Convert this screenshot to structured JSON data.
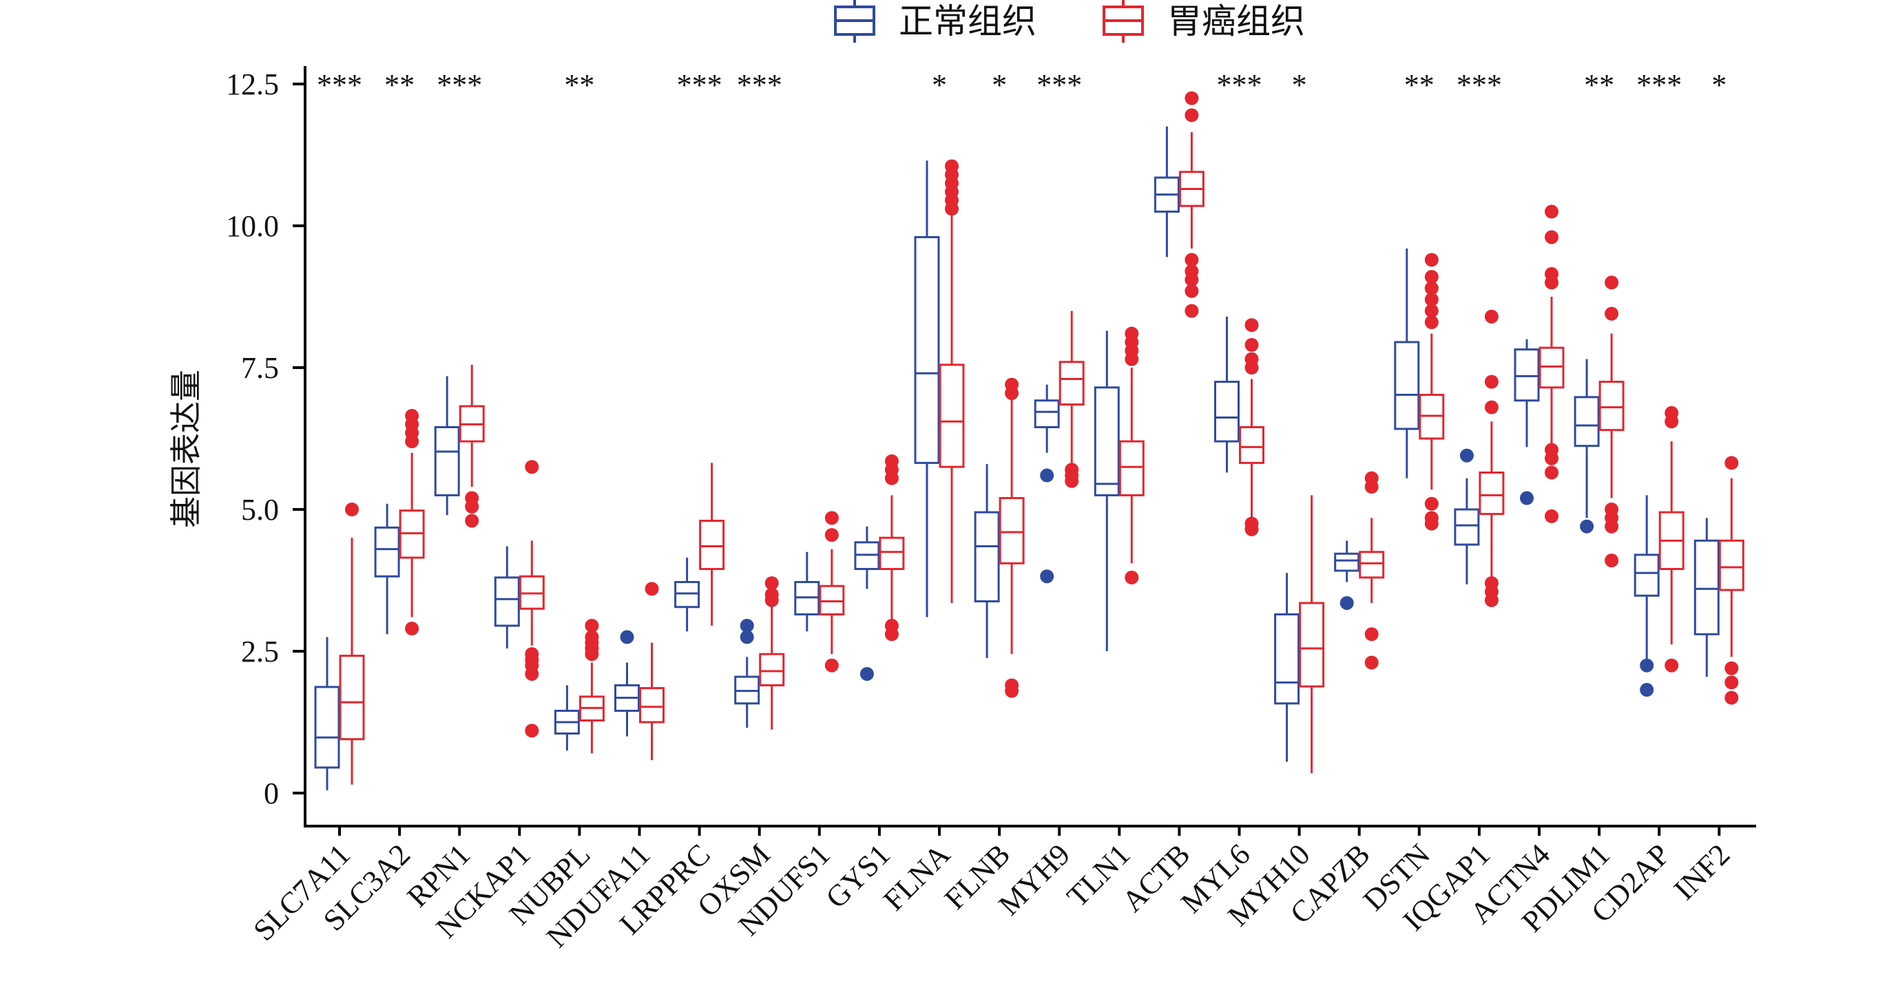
{
  "chart_data": {
    "type": "boxplot",
    "ylabel": "基因表达量",
    "ylim": [
      -0.5,
      12.9
    ],
    "yticks": [
      "0",
      "2.5",
      "5.0",
      "7.5",
      "10.0",
      "12.5"
    ],
    "ytick_values": [
      0,
      2.5,
      5.0,
      7.5,
      10.0,
      12.5
    ],
    "legend_position": "top-center",
    "colors": {
      "normal": "#2f4b9e",
      "tumor": "#e3262f",
      "outlier_normal": "#2c4ea6",
      "outlier_tumor": "#e3262f"
    },
    "series": [
      {
        "name": "正常组织",
        "color": "#2f4b9e"
      },
      {
        "name": "胃癌组织",
        "color": "#e3262f"
      }
    ],
    "categories": [
      "SLC7A11",
      "SLC3A2",
      "RPN1",
      "NCKAP1",
      "NUBPL",
      "NDUFA11",
      "LRPPRC",
      "OXSM",
      "NDUFS1",
      "GYS1",
      "FLNA",
      "FLNB",
      "MYH9",
      "TLN1",
      "ACTB",
      "MYL6",
      "MYH10",
      "CAPZB",
      "DSTN",
      "IQGAP1",
      "ACTN4",
      "PDLIM1",
      "CD2AP",
      "INF2"
    ],
    "significance": [
      "***",
      "**",
      "***",
      "",
      "**",
      "",
      "***",
      "***",
      "",
      "",
      "*",
      "*",
      "***",
      "",
      "",
      "***",
      "*",
      "",
      "**",
      "***",
      "",
      "**",
      "***",
      "*"
    ],
    "boxes": [
      {
        "normal": {
          "min": 0.05,
          "q1": 0.45,
          "median": 0.98,
          "q3": 1.87,
          "max": 2.75,
          "outliers": []
        },
        "tumor": {
          "min": 0.15,
          "q1": 0.95,
          "median": 1.6,
          "q3": 2.42,
          "max": 4.5,
          "outliers": [
            5.0
          ]
        }
      },
      {
        "normal": {
          "min": 2.8,
          "q1": 3.82,
          "median": 4.3,
          "q3": 4.68,
          "max": 5.1,
          "outliers": []
        },
        "tumor": {
          "min": 3.1,
          "q1": 4.15,
          "median": 4.58,
          "q3": 4.98,
          "max": 6.0,
          "outliers": [
            2.9,
            6.2,
            6.35,
            6.5,
            6.65
          ]
        }
      },
      {
        "normal": {
          "min": 4.9,
          "q1": 5.25,
          "median": 6.02,
          "q3": 6.45,
          "max": 7.35,
          "outliers": []
        },
        "tumor": {
          "min": 5.4,
          "q1": 6.2,
          "median": 6.5,
          "q3": 6.82,
          "max": 7.55,
          "outliers": [
            4.8,
            5.05,
            5.2
          ]
        }
      },
      {
        "normal": {
          "min": 2.55,
          "q1": 2.95,
          "median": 3.42,
          "q3": 3.8,
          "max": 4.35,
          "outliers": []
        },
        "tumor": {
          "min": 2.6,
          "q1": 3.25,
          "median": 3.52,
          "q3": 3.82,
          "max": 4.45,
          "outliers": [
            1.1,
            2.1,
            2.25,
            2.35,
            2.45,
            5.75
          ]
        }
      },
      {
        "normal": {
          "min": 0.75,
          "q1": 1.05,
          "median": 1.25,
          "q3": 1.45,
          "max": 1.9,
          "outliers": []
        },
        "tumor": {
          "min": 0.7,
          "q1": 1.28,
          "median": 1.5,
          "q3": 1.7,
          "max": 2.3,
          "outliers": [
            2.45,
            2.55,
            2.65,
            2.75,
            2.95
          ]
        }
      },
      {
        "normal": {
          "min": 1.0,
          "q1": 1.45,
          "median": 1.68,
          "q3": 1.9,
          "max": 2.3,
          "outliers": [
            2.75
          ]
        },
        "tumor": {
          "min": 0.58,
          "q1": 1.25,
          "median": 1.52,
          "q3": 1.85,
          "max": 2.65,
          "outliers": [
            3.6
          ]
        }
      },
      {
        "normal": {
          "min": 2.85,
          "q1": 3.28,
          "median": 3.52,
          "q3": 3.72,
          "max": 4.15,
          "outliers": []
        },
        "tumor": {
          "min": 2.95,
          "q1": 3.95,
          "median": 4.35,
          "q3": 4.8,
          "max": 5.82,
          "outliers": []
        }
      },
      {
        "normal": {
          "min": 1.15,
          "q1": 1.58,
          "median": 1.8,
          "q3": 2.05,
          "max": 2.4,
          "outliers": [
            2.75,
            2.95
          ]
        },
        "tumor": {
          "min": 1.12,
          "q1": 1.9,
          "median": 2.15,
          "q3": 2.45,
          "max": 3.3,
          "outliers": [
            3.4,
            3.5,
            3.7
          ]
        }
      },
      {
        "normal": {
          "min": 2.85,
          "q1": 3.15,
          "median": 3.45,
          "q3": 3.72,
          "max": 4.25,
          "outliers": []
        },
        "tumor": {
          "min": 2.45,
          "q1": 3.15,
          "median": 3.38,
          "q3": 3.65,
          "max": 4.3,
          "outliers": [
            2.25,
            4.55,
            4.85
          ]
        }
      },
      {
        "normal": {
          "min": 3.6,
          "q1": 3.95,
          "median": 4.2,
          "q3": 4.42,
          "max": 4.7,
          "outliers": [
            2.1
          ]
        },
        "tumor": {
          "min": 3.05,
          "q1": 3.95,
          "median": 4.25,
          "q3": 4.5,
          "max": 5.25,
          "outliers": [
            2.8,
            2.95,
            5.55,
            5.7,
            5.85
          ]
        }
      },
      {
        "normal": {
          "min": 3.1,
          "q1": 5.82,
          "median": 7.4,
          "q3": 9.8,
          "max": 11.15,
          "outliers": []
        },
        "tumor": {
          "min": 3.35,
          "q1": 5.75,
          "median": 6.55,
          "q3": 7.55,
          "max": 10.2,
          "outliers": [
            10.3,
            10.45,
            10.6,
            10.75,
            10.9,
            11.05
          ]
        }
      },
      {
        "normal": {
          "min": 2.38,
          "q1": 3.38,
          "median": 4.35,
          "q3": 4.95,
          "max": 5.8,
          "outliers": []
        },
        "tumor": {
          "min": 2.45,
          "q1": 4.05,
          "median": 4.6,
          "q3": 5.2,
          "max": 6.95,
          "outliers": [
            1.8,
            1.9,
            7.05,
            7.2
          ]
        }
      },
      {
        "normal": {
          "min": 6.0,
          "q1": 6.45,
          "median": 6.72,
          "q3": 6.92,
          "max": 7.2,
          "outliers": [
            3.82,
            5.6
          ]
        },
        "tumor": {
          "min": 5.8,
          "q1": 6.85,
          "median": 7.3,
          "q3": 7.6,
          "max": 8.5,
          "outliers": [
            5.5,
            5.6,
            5.7
          ]
        }
      },
      {
        "normal": {
          "min": 2.5,
          "q1": 5.25,
          "median": 5.45,
          "q3": 7.15,
          "max": 8.15,
          "outliers": []
        },
        "tumor": {
          "min": 4.05,
          "q1": 5.25,
          "median": 5.75,
          "q3": 6.2,
          "max": 7.5,
          "outliers": [
            3.8,
            7.65,
            7.8,
            7.95,
            8.1
          ]
        }
      },
      {
        "normal": {
          "min": 9.45,
          "q1": 10.25,
          "median": 10.55,
          "q3": 10.85,
          "max": 11.75,
          "outliers": []
        },
        "tumor": {
          "min": 9.6,
          "q1": 10.35,
          "median": 10.65,
          "q3": 10.95,
          "max": 11.65,
          "outliers": [
            8.5,
            8.85,
            9.05,
            9.2,
            9.4,
            11.95,
            12.25
          ]
        }
      },
      {
        "normal": {
          "min": 5.65,
          "q1": 6.2,
          "median": 6.62,
          "q3": 7.25,
          "max": 8.4,
          "outliers": []
        },
        "tumor": {
          "min": 4.85,
          "q1": 5.82,
          "median": 6.1,
          "q3": 6.45,
          "max": 7.3,
          "outliers": [
            4.65,
            4.75,
            7.5,
            7.65,
            7.9,
            8.25
          ]
        }
      },
      {
        "normal": {
          "min": 0.55,
          "q1": 1.58,
          "median": 1.95,
          "q3": 3.15,
          "max": 3.88,
          "outliers": []
        },
        "tumor": {
          "min": 0.35,
          "q1": 1.88,
          "median": 2.55,
          "q3": 3.35,
          "max": 5.25,
          "outliers": []
        }
      },
      {
        "normal": {
          "min": 3.72,
          "q1": 3.92,
          "median": 4.1,
          "q3": 4.22,
          "max": 4.45,
          "outliers": [
            3.35
          ]
        },
        "tumor": {
          "min": 3.35,
          "q1": 3.8,
          "median": 4.05,
          "q3": 4.25,
          "max": 4.85,
          "outliers": [
            2.3,
            2.8,
            5.4,
            5.55
          ]
        }
      },
      {
        "normal": {
          "min": 5.55,
          "q1": 6.42,
          "median": 7.02,
          "q3": 7.95,
          "max": 9.6,
          "outliers": []
        },
        "tumor": {
          "min": 5.35,
          "q1": 6.25,
          "median": 6.65,
          "q3": 7.02,
          "max": 8.1,
          "outliers": [
            4.75,
            4.85,
            5.1,
            8.3,
            8.5,
            8.7,
            8.9,
            9.1,
            9.4
          ]
        }
      },
      {
        "normal": {
          "min": 3.68,
          "q1": 4.38,
          "median": 4.72,
          "q3": 5.0,
          "max": 5.55,
          "outliers": [
            5.95
          ]
        },
        "tumor": {
          "min": 3.75,
          "q1": 4.92,
          "median": 5.25,
          "q3": 5.65,
          "max": 6.55,
          "outliers": [
            3.4,
            3.55,
            3.7,
            6.8,
            7.25,
            8.4
          ]
        }
      },
      {
        "normal": {
          "min": 6.1,
          "q1": 6.92,
          "median": 7.35,
          "q3": 7.82,
          "max": 8.0,
          "outliers": [
            5.2
          ]
        },
        "tumor": {
          "min": 6.1,
          "q1": 7.15,
          "median": 7.52,
          "q3": 7.85,
          "max": 8.75,
          "outliers": [
            4.88,
            5.65,
            5.9,
            6.05,
            9.0,
            9.15,
            9.8,
            10.25
          ]
        }
      },
      {
        "normal": {
          "min": 4.85,
          "q1": 6.12,
          "median": 6.48,
          "q3": 6.98,
          "max": 7.65,
          "outliers": [
            4.7
          ]
        },
        "tumor": {
          "min": 5.2,
          "q1": 6.4,
          "median": 6.8,
          "q3": 7.25,
          "max": 8.1,
          "outliers": [
            4.1,
            4.7,
            4.85,
            5.0,
            8.45,
            9.0
          ]
        }
      },
      {
        "normal": {
          "min": 2.35,
          "q1": 3.48,
          "median": 3.88,
          "q3": 4.2,
          "max": 5.25,
          "outliers": [
            1.82,
            2.25
          ]
        },
        "tumor": {
          "min": 2.62,
          "q1": 3.95,
          "median": 4.45,
          "q3": 4.95,
          "max": 6.2,
          "outliers": [
            2.25,
            6.55,
            6.7
          ]
        }
      },
      {
        "normal": {
          "min": 2.05,
          "q1": 2.8,
          "median": 3.6,
          "q3": 4.45,
          "max": 4.85,
          "outliers": []
        },
        "tumor": {
          "min": 2.4,
          "q1": 3.58,
          "median": 3.98,
          "q3": 4.45,
          "max": 5.55,
          "outliers": [
            1.68,
            1.95,
            2.2,
            5.82
          ]
        }
      }
    ]
  }
}
